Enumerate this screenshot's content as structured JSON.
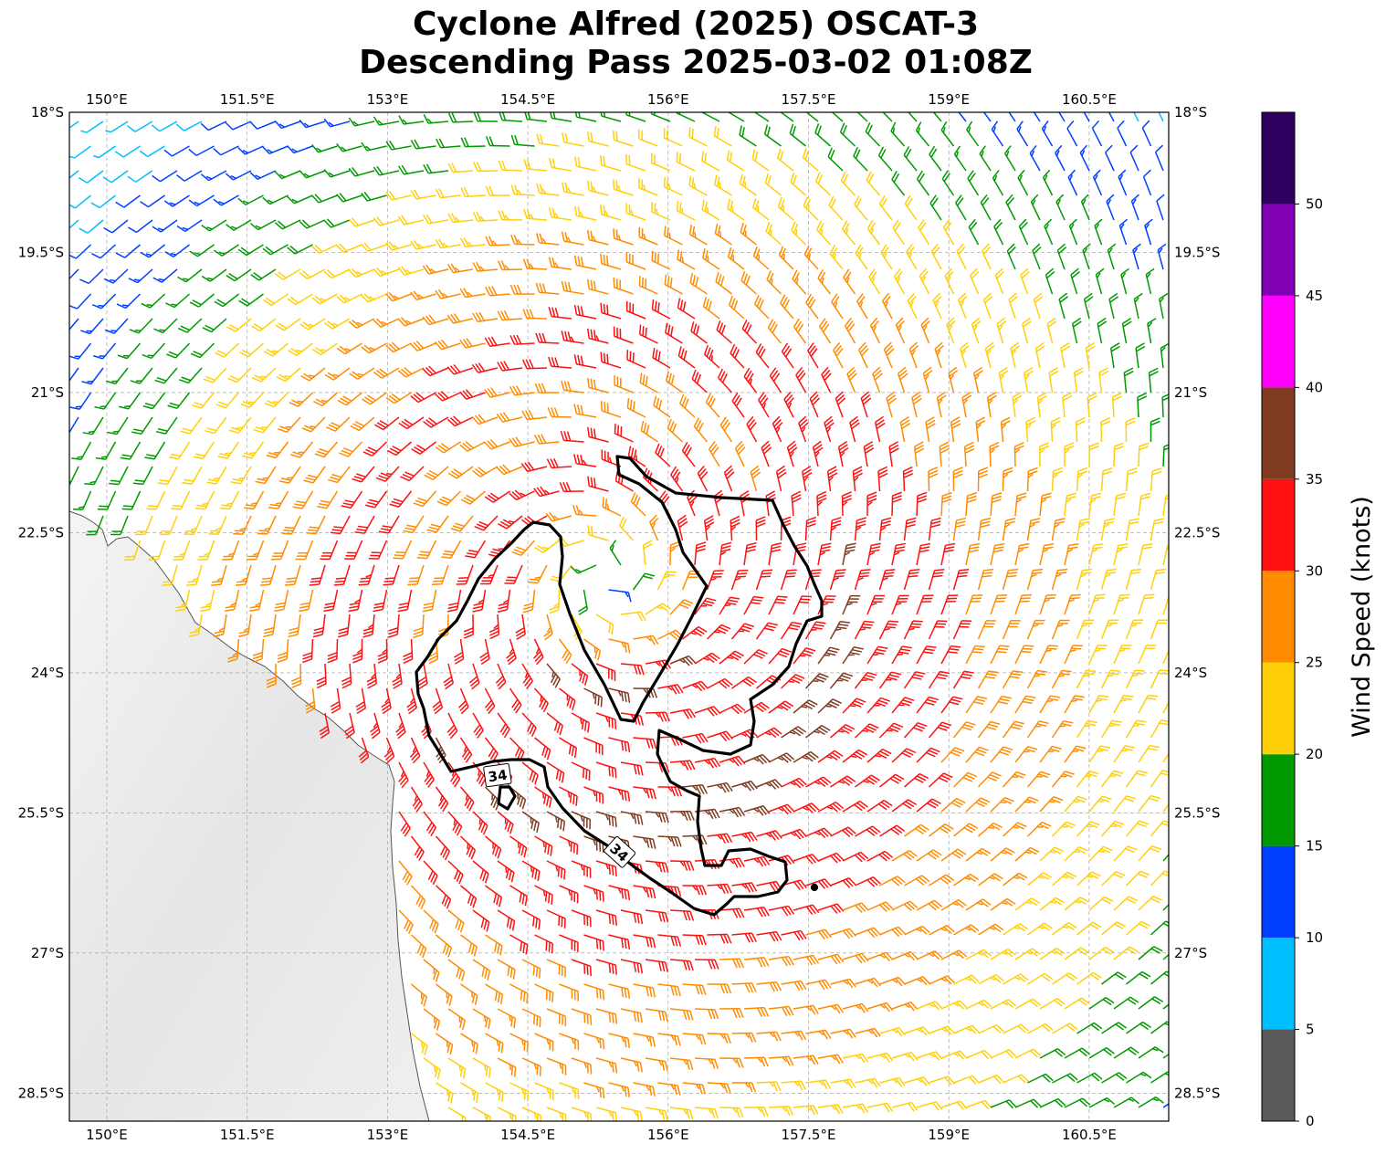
{
  "title_line1": "Cyclone Alfred (2025) OSCAT-3",
  "title_line2": "Descending Pass 2025-03-02 01:08Z",
  "lon_ticks": [
    "150°E",
    "151.5°E",
    "153°E",
    "154.5°E",
    "156°E",
    "157.5°E",
    "159°E",
    "160.5°E"
  ],
  "lat_ticks": [
    "18°S",
    "19.5°S",
    "21°S",
    "22.5°S",
    "24°S",
    "25.5°S",
    "27°S",
    "28.5°S"
  ],
  "map": {
    "lon_range": [
      149.6,
      161.35
    ],
    "lat_range": [
      -28.8,
      -18.0
    ],
    "storm_center": {
      "lon": 155.35,
      "lat": -23.0
    },
    "contour_labels": [
      "34",
      "34"
    ]
  },
  "colorbar": {
    "label": "Wind Speed (knots)",
    "ticks": [
      "0",
      "5",
      "10",
      "15",
      "20",
      "25",
      "30",
      "35",
      "40",
      "45",
      "50"
    ],
    "bins": [
      {
        "min": 0,
        "max": 5,
        "color": "#595959"
      },
      {
        "min": 5,
        "max": 10,
        "color": "#00bfff"
      },
      {
        "min": 10,
        "max": 15,
        "color": "#0040ff"
      },
      {
        "min": 15,
        "max": 20,
        "color": "#009a00"
      },
      {
        "min": 20,
        "max": 25,
        "color": "#ffd00a"
      },
      {
        "min": 25,
        "max": 30,
        "color": "#ff8c00"
      },
      {
        "min": 30,
        "max": 35,
        "color": "#ff1010"
      },
      {
        "min": 35,
        "max": 40,
        "color": "#7f3a20"
      },
      {
        "min": 40,
        "max": 45,
        "color": "#ff00ff"
      },
      {
        "min": 45,
        "max": 50,
        "color": "#8000b3"
      },
      {
        "min": 50,
        "max": 55,
        "color": "#2d0060"
      }
    ]
  }
}
